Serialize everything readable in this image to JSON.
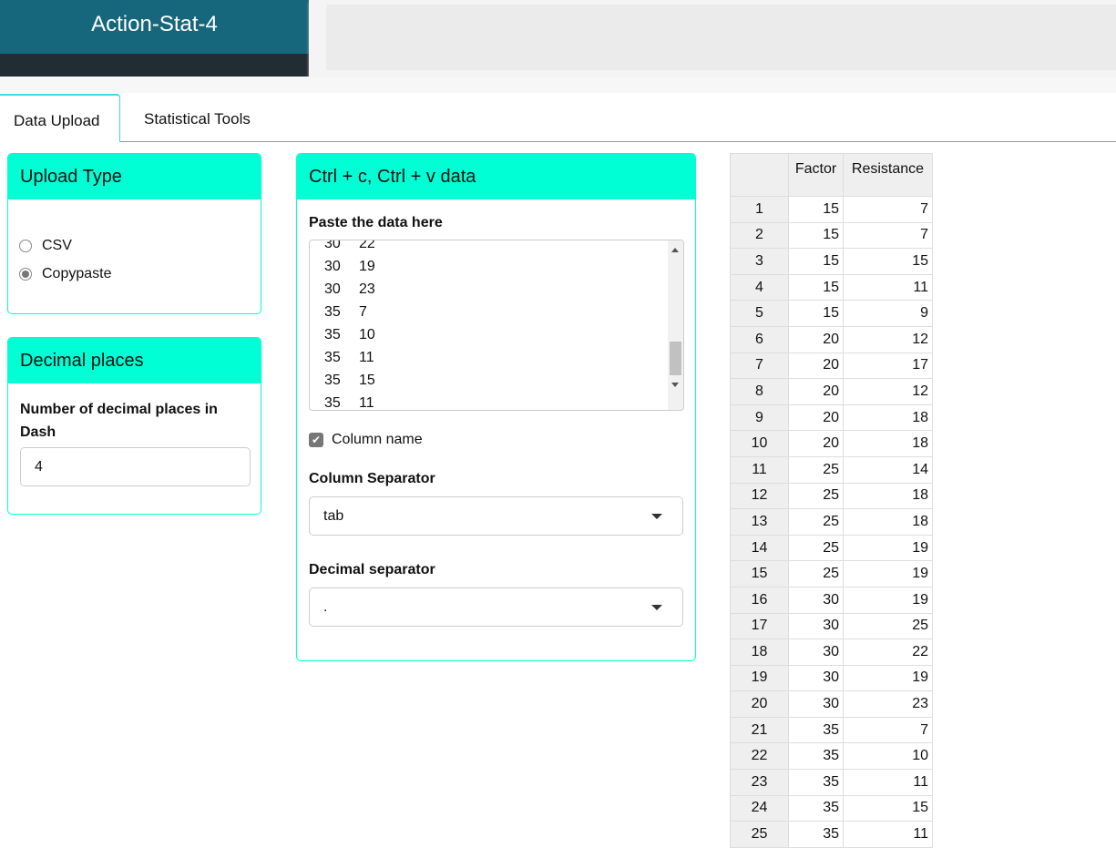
{
  "app": {
    "title": "Action-Stat-4"
  },
  "tabs": [
    {
      "label": "Data Upload",
      "active": true
    },
    {
      "label": "Statistical Tools",
      "active": false
    }
  ],
  "upload_type": {
    "title": "Upload Type",
    "options": [
      {
        "label": "CSV",
        "selected": false
      },
      {
        "label": "Copypaste",
        "selected": true
      }
    ]
  },
  "decimal": {
    "title": "Decimal places",
    "label": "Number of decimal places in Dash",
    "value": "4"
  },
  "paste": {
    "title": "Ctrl + c, Ctrl + v data",
    "label": "Paste the data here",
    "visible_lines": [
      [
        "30",
        "22"
      ],
      [
        "30",
        "19"
      ],
      [
        "30",
        "23"
      ],
      [
        "35",
        "7"
      ],
      [
        "35",
        "10"
      ],
      [
        "35",
        "11"
      ],
      [
        "35",
        "15"
      ],
      [
        "35",
        "11"
      ]
    ],
    "column_name_label": "Column name",
    "column_name_checked": true,
    "col_sep_label": "Column Separator",
    "col_sep_value": "tab",
    "dec_sep_label": "Decimal separator",
    "dec_sep_value": "."
  },
  "table": {
    "headers": [
      "",
      "Factor",
      "Resistance"
    ],
    "rows": [
      [
        "1",
        "15",
        "7"
      ],
      [
        "2",
        "15",
        "7"
      ],
      [
        "3",
        "15",
        "15"
      ],
      [
        "4",
        "15",
        "11"
      ],
      [
        "5",
        "15",
        "9"
      ],
      [
        "6",
        "20",
        "12"
      ],
      [
        "7",
        "20",
        "17"
      ],
      [
        "8",
        "20",
        "12"
      ],
      [
        "9",
        "20",
        "18"
      ],
      [
        "10",
        "20",
        "18"
      ],
      [
        "11",
        "25",
        "14"
      ],
      [
        "12",
        "25",
        "18"
      ],
      [
        "13",
        "25",
        "18"
      ],
      [
        "14",
        "25",
        "19"
      ],
      [
        "15",
        "25",
        "19"
      ],
      [
        "16",
        "30",
        "19"
      ],
      [
        "17",
        "30",
        "25"
      ],
      [
        "18",
        "30",
        "22"
      ],
      [
        "19",
        "30",
        "19"
      ],
      [
        "20",
        "30",
        "23"
      ],
      [
        "21",
        "35",
        "7"
      ],
      [
        "22",
        "35",
        "10"
      ],
      [
        "23",
        "35",
        "11"
      ],
      [
        "24",
        "35",
        "15"
      ],
      [
        "25",
        "35",
        "11"
      ]
    ]
  },
  "colors": {
    "header": "#17677c",
    "card_header": "#00ffd5",
    "tab_accent": "#3fd8e6"
  }
}
